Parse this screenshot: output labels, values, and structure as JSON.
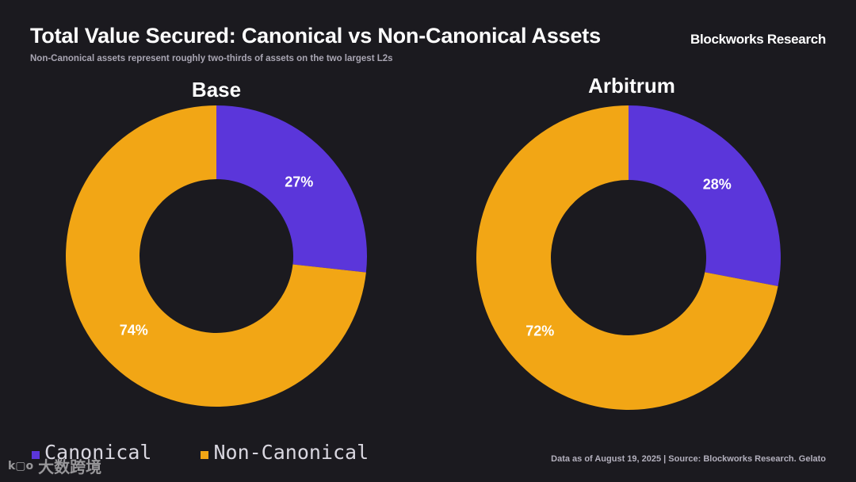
{
  "header": {
    "title": "Total Value Secured: Canonical vs Non-Canonical Assets",
    "subtitle": "Non-Canonical assets represent roughly two-thirds of assets on the two largest L2s",
    "brand": "Blockworks Research"
  },
  "colors": {
    "canonical": "#5b36da",
    "non_canonical": "#f2a615",
    "background": "#1b1a1f"
  },
  "legend": [
    {
      "label": "Canonical",
      "color": "#5b36da"
    },
    {
      "label": "Non-Canonical",
      "color": "#f2a615"
    }
  ],
  "footnote": "Data as of August 19, 2025 | Source: Blockworks Research. Gelato",
  "watermark": {
    "text": "大数跨境",
    "logo": "k▢o"
  },
  "chart_data": [
    {
      "type": "pie",
      "title": "Base",
      "categories": [
        "Canonical",
        "Non-Canonical"
      ],
      "values": [
        27,
        74
      ],
      "labels": [
        "27%",
        "74%"
      ]
    },
    {
      "type": "pie",
      "title": "Arbitrum",
      "categories": [
        "Canonical",
        "Non-Canonical"
      ],
      "values": [
        28,
        72
      ],
      "labels": [
        "28%",
        "72%"
      ]
    }
  ]
}
